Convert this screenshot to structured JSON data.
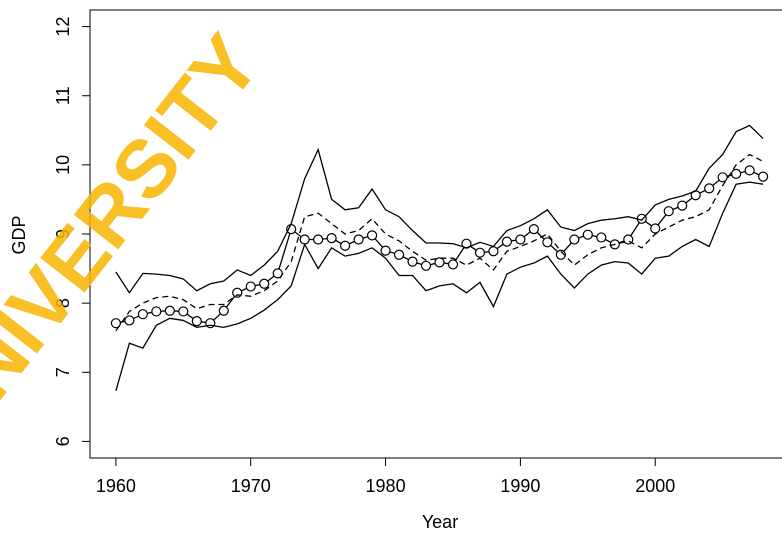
{
  "chart_data": {
    "type": "line",
    "x_label": "Year",
    "y_label": "GDP",
    "watermark": "UNIVERSITY",
    "watermark_color": "#f7b500",
    "xlim": [
      1958.08,
      2009.92
    ],
    "ylim": [
      5.76,
      12.24
    ],
    "xticks": [
      1960,
      1970,
      1980,
      1990,
      2000
    ],
    "yticks": [
      6,
      7,
      8,
      9,
      10,
      11,
      12
    ],
    "x": [
      1960,
      1961,
      1962,
      1963,
      1964,
      1965,
      1966,
      1967,
      1968,
      1969,
      1970,
      1971,
      1972,
      1973,
      1974,
      1975,
      1976,
      1977,
      1978,
      1979,
      1980,
      1981,
      1982,
      1983,
      1984,
      1985,
      1986,
      1987,
      1988,
      1989,
      1990,
      1991,
      1992,
      1993,
      1994,
      1995,
      1996,
      1997,
      1998,
      1999,
      2000,
      2001,
      2002,
      2003,
      2004,
      2005,
      2006,
      2007,
      2008
    ],
    "series": [
      {
        "color": "#000000",
        "style": "solid",
        "marker": "circle",
        "values": [
          7.71,
          7.75,
          7.84,
          7.88,
          7.89,
          7.88,
          7.74,
          7.71,
          7.89,
          8.15,
          8.24,
          8.28,
          8.43,
          9.07,
          8.92,
          8.92,
          8.94,
          8.83,
          8.92,
          8.98,
          8.76,
          8.7,
          8.6,
          8.54,
          8.59,
          8.56,
          8.86,
          8.73,
          8.75,
          8.89,
          8.92,
          9.07,
          8.88,
          8.7,
          8.92,
          8.99,
          8.95,
          8.85,
          8.92,
          9.22,
          9.08,
          9.33,
          9.41,
          9.56,
          9.66,
          9.82,
          9.87,
          9.92,
          9.83
        ]
      },
      {
        "color": "#000000",
        "style": "dashed",
        "marker": "none",
        "values": [
          7.6,
          7.88,
          8.0,
          8.08,
          8.1,
          8.05,
          7.92,
          7.98,
          7.98,
          8.12,
          8.1,
          8.18,
          8.32,
          8.6,
          9.25,
          9.3,
          9.15,
          9.0,
          9.05,
          9.22,
          9.0,
          8.9,
          8.75,
          8.62,
          8.65,
          8.65,
          8.55,
          8.65,
          8.48,
          8.75,
          8.82,
          8.9,
          9.0,
          8.75,
          8.55,
          8.7,
          8.8,
          8.85,
          8.9,
          8.8,
          9.0,
          9.1,
          9.2,
          9.25,
          9.35,
          9.7,
          10.0,
          10.15,
          10.05
        ]
      },
      {
        "color": "#000000",
        "style": "solid",
        "marker": "none",
        "values": [
          8.45,
          8.15,
          8.43,
          8.42,
          8.4,
          8.35,
          8.18,
          8.28,
          8.32,
          8.48,
          8.4,
          8.55,
          8.75,
          9.15,
          9.8,
          10.22,
          9.5,
          9.35,
          9.38,
          9.65,
          9.35,
          9.25,
          9.05,
          8.87,
          8.87,
          8.86,
          8.8,
          8.88,
          8.82,
          9.05,
          9.12,
          9.22,
          9.35,
          9.1,
          9.05,
          9.15,
          9.2,
          9.22,
          9.25,
          9.2,
          9.42,
          9.5,
          9.55,
          9.62,
          9.95,
          10.15,
          10.48,
          10.57,
          10.38
        ]
      },
      {
        "color": "#000000",
        "style": "solid",
        "marker": "none",
        "values": [
          6.73,
          7.42,
          7.35,
          7.68,
          7.78,
          7.75,
          7.65,
          7.68,
          7.65,
          7.7,
          7.78,
          7.9,
          8.05,
          8.25,
          8.85,
          8.5,
          8.8,
          8.68,
          8.72,
          8.8,
          8.65,
          8.4,
          8.4,
          8.18,
          8.25,
          8.28,
          8.15,
          8.3,
          7.95,
          8.42,
          8.52,
          8.58,
          8.68,
          8.42,
          8.22,
          8.42,
          8.55,
          8.6,
          8.58,
          8.42,
          8.65,
          8.68,
          8.82,
          8.92,
          8.82,
          9.3,
          9.72,
          9.75,
          9.72
        ]
      }
    ]
  }
}
